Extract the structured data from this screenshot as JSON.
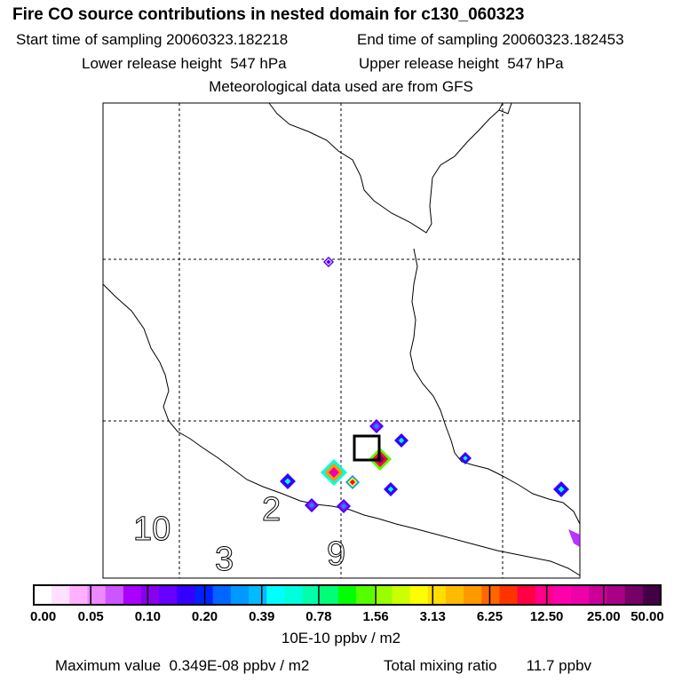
{
  "header": {
    "title": "Fire CO source contributions in nested domain for c130_060323",
    "start_label": "Start time of sampling",
    "start_value": "20060323.182218",
    "end_label": "End time of sampling",
    "end_value": "20060323.182453",
    "lower_label": "Lower release height",
    "lower_value": "547 hPa",
    "upper_label": "Upper release height",
    "upper_value": "547 hPa",
    "met_line": "Meteorological data used are from GFS"
  },
  "map": {
    "region_labels": [
      "10",
      "2",
      "3",
      "9"
    ],
    "accent_colors": {
      "coast": "#000000",
      "grid": "#000000"
    }
  },
  "colorbar": {
    "tick_labels": [
      "0.00",
      "0.05",
      "0.10",
      "0.20",
      "0.39",
      "0.78",
      "1.56",
      "3.13",
      "6.25",
      "12.50",
      "25.00",
      "50.00"
    ],
    "units": "10E-10 ppbv / m2"
  },
  "footer": {
    "max_label": "Maximum value",
    "max_value": "0.349E-08 ppbv / m2",
    "total_label": "Total mixing ratio",
    "total_value": "11.7 ppbv"
  },
  "chart_data": {
    "type": "heatmap",
    "title": "Fire CO source contributions in nested domain for c130_060323",
    "colorbar_levels": [
      0.0,
      0.05,
      0.1,
      0.2,
      0.39,
      0.78,
      1.56,
      3.13,
      6.25,
      12.5,
      25.0,
      50.0
    ],
    "colorbar_colors": [
      "#ffffff",
      "#ffe0ff",
      "#ffb0ff",
      "#ee88ff",
      "#cc55ff",
      "#aa00ff",
      "#8800ee",
      "#6600ff",
      "#3300ff",
      "#0022ff",
      "#0066ff",
      "#0099ff",
      "#00bbff",
      "#00ffff",
      "#00ffdd",
      "#00ffaa",
      "#00ff77",
      "#00ff00",
      "#55ff00",
      "#99ff00",
      "#ccff00",
      "#ffff00",
      "#ffdd00",
      "#ffbb00",
      "#ff9900",
      "#ff6600",
      "#ff3300",
      "#ff0044",
      "#ff0088",
      "#ff00aa",
      "#ee00aa",
      "#cc0099",
      "#aa0088",
      "#770066",
      "#440044"
    ],
    "hotspots": [
      {
        "id": "h1",
        "value": 0.1
      },
      {
        "id": "h2",
        "value": 0.39
      },
      {
        "id": "h3",
        "value": 12.5
      },
      {
        "id": "h4",
        "value": 25.0
      },
      {
        "id": "h5",
        "value": 6.25
      },
      {
        "id": "h6",
        "value": 0.2
      },
      {
        "id": "h7",
        "value": 0.39
      },
      {
        "id": "h8",
        "value": 0.2
      },
      {
        "id": "h9",
        "value": 0.2
      },
      {
        "id": "h10",
        "value": 0.39
      },
      {
        "id": "h11",
        "value": 0.39
      },
      {
        "id": "h12",
        "value": 0.39
      }
    ],
    "units": "10E-10 ppbv / m2",
    "max_value": "0.349E-08 ppbv / m2",
    "total_mixing_ratio": "11.7 ppbv"
  }
}
